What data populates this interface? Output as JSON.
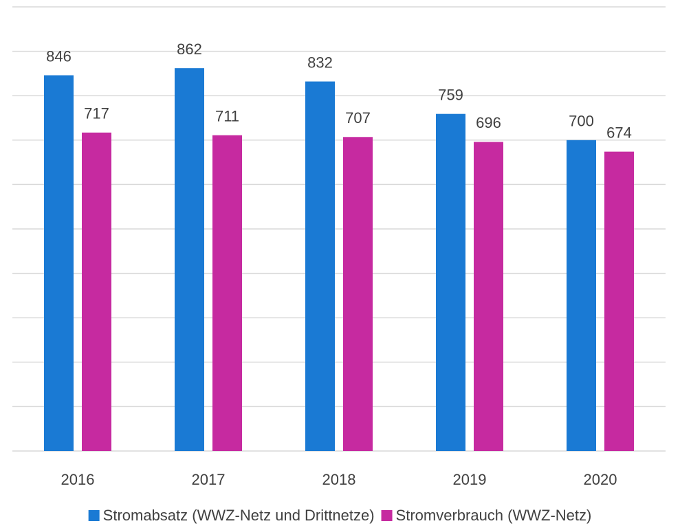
{
  "chart_data": {
    "type": "bar",
    "categories": [
      "2016",
      "2017",
      "2018",
      "2019",
      "2020"
    ],
    "series": [
      {
        "name": "Stromabsatz (WWZ-Netz und Drittnetze)",
        "color": "#1a7ad4",
        "values": [
          846,
          862,
          832,
          759,
          700
        ]
      },
      {
        "name": "Stromverbrauch (WWZ-Netz)",
        "color": "#c62aa0",
        "values": [
          717,
          711,
          707,
          696,
          674
        ]
      }
    ],
    "ylim": [
      0,
      1000
    ],
    "yticks": [
      0,
      100,
      200,
      300,
      400,
      500,
      600,
      700,
      800,
      900,
      1000
    ],
    "grid": true,
    "legend": "bottom"
  }
}
